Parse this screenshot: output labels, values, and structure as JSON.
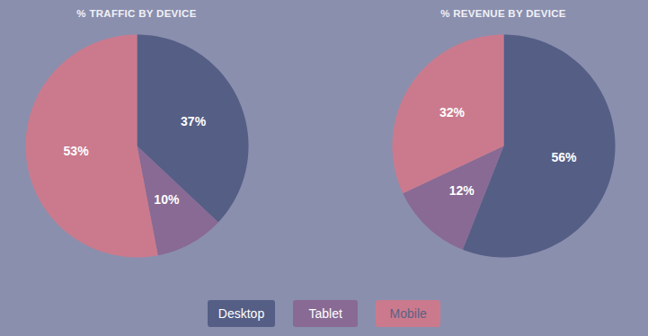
{
  "chart_data": [
    {
      "type": "pie",
      "title": "% TRAFFIC BY DEVICE",
      "categories": [
        "Desktop",
        "Tablet",
        "Mobile"
      ],
      "values": [
        37,
        10,
        53
      ],
      "value_labels": [
        "37%",
        "10%",
        "53%"
      ],
      "colors": [
        "#555e85",
        "#886a94",
        "#cb7a8d"
      ],
      "data_labels": true,
      "legend": "bottom"
    },
    {
      "type": "pie",
      "title": "% REVENUE BY DEVICE",
      "categories": [
        "Desktop",
        "Tablet",
        "Mobile"
      ],
      "values": [
        56,
        12,
        32
      ],
      "value_labels": [
        "56%",
        "12%",
        "32%"
      ],
      "colors": [
        "#555e85",
        "#886a94",
        "#cb7a8d"
      ],
      "data_labels": true,
      "legend": "bottom"
    }
  ]
}
